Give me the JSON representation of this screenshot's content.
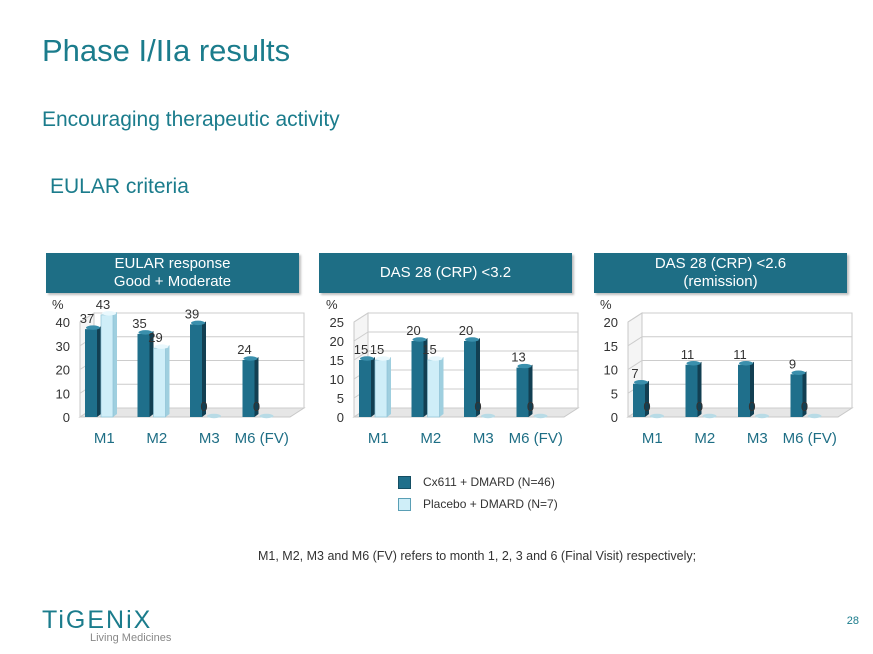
{
  "title": "Phase I/IIa results",
  "subtitle": "Encouraging therapeutic activity",
  "section": "EULAR criteria",
  "legend": {
    "items": [
      {
        "label": "Cx611 + DMARD (N=46)",
        "color": "#1f6f8b"
      },
      {
        "label": "Placebo + DMARD (N=7)",
        "color": "#cfeef8"
      }
    ]
  },
  "footnote": "M1, M2, M3 and M6 (FV) refers to month 1, 2, 3 and 6 (Final Visit) respectively;",
  "page_number": "28",
  "logo": {
    "name": "TiGENiX",
    "tagline": "Living Medicines"
  },
  "colors": {
    "accent": "#1b7c8c",
    "header_bg": "#1e6e85",
    "cx611": "#1f6f8b",
    "placebo": "#cfeef8"
  },
  "chart_data": [
    {
      "type": "bar",
      "title": "EULAR response\nGood + Moderate",
      "ylabel": "%",
      "ylim": [
        0,
        40
      ],
      "yticks": [
        0,
        10,
        20,
        30,
        40
      ],
      "categories": [
        "M1",
        "M2",
        "M3",
        "M6 (FV)"
      ],
      "series": [
        {
          "name": "Cx611 + DMARD (N=46)",
          "values": [
            37,
            35,
            39,
            24
          ]
        },
        {
          "name": "Placebo + DMARD (N=7)",
          "values": [
            43,
            29,
            0,
            0
          ]
        }
      ]
    },
    {
      "type": "bar",
      "title": "DAS 28 (CRP) <3.2",
      "ylabel": "%",
      "ylim": [
        0,
        25
      ],
      "yticks": [
        0,
        5,
        10,
        15,
        20,
        25
      ],
      "categories": [
        "M1",
        "M2",
        "M3",
        "M6 (FV)"
      ],
      "series": [
        {
          "name": "Cx611 + DMARD (N=46)",
          "values": [
            15,
            20,
            20,
            13
          ]
        },
        {
          "name": "Placebo + DMARD (N=7)",
          "values": [
            15,
            15,
            0,
            0
          ]
        }
      ]
    },
    {
      "type": "bar",
      "title": "DAS 28 (CRP) <2.6\n(remission)",
      "ylabel": "%",
      "ylim": [
        0,
        20
      ],
      "yticks": [
        0,
        5,
        10,
        15,
        20
      ],
      "categories": [
        "M1",
        "M2",
        "M3",
        "M6 (FV)"
      ],
      "series": [
        {
          "name": "Cx611 + DMARD (N=46)",
          "values": [
            7,
            11,
            11,
            9
          ]
        },
        {
          "name": "Placebo + DMARD (N=7)",
          "values": [
            0,
            0,
            0,
            0
          ]
        }
      ]
    }
  ]
}
